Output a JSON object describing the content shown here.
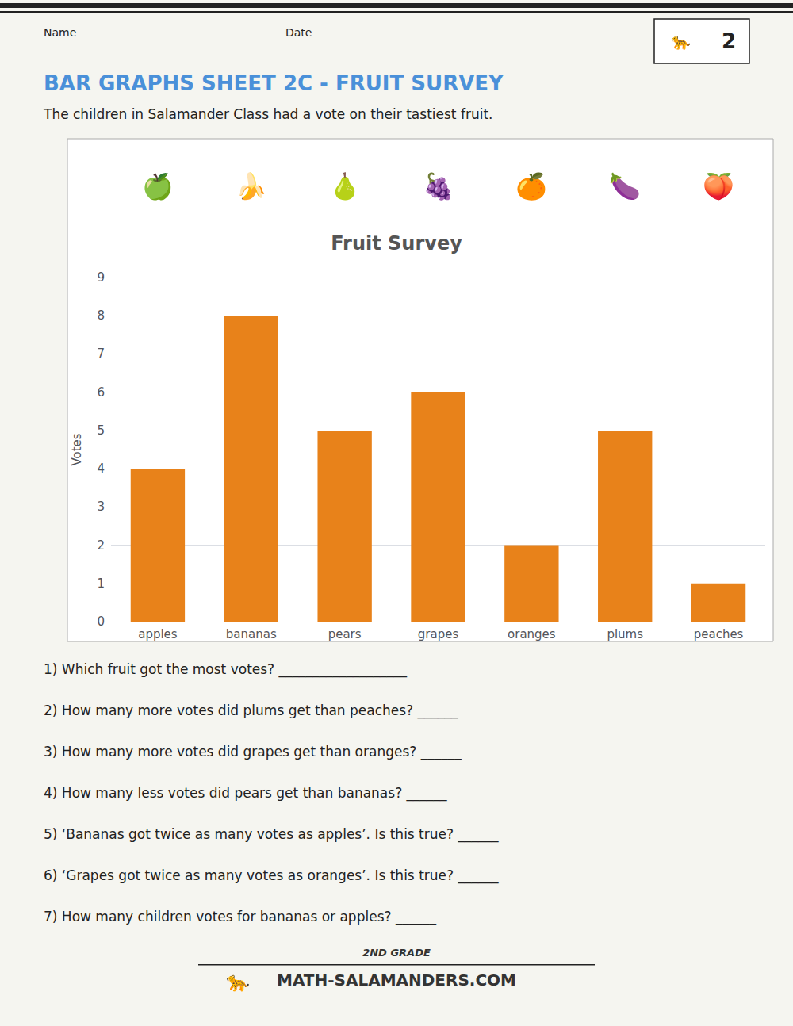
{
  "title": "BAR GRAPHS SHEET 2C - FRUIT SURVEY",
  "subtitle": "The children in Salamander Class had a vote on their tastiest fruit.",
  "annotations": [
    "Name",
    "Date",
    "2",
    "🐆",
    "1) Which fruit got the most votes? ___________________",
    "2) How many more votes did plums get than peaches? ______",
    "3) How many more votes did grapes get than oranges? ______",
    "4) How many less votes did pears get than bananas? ______",
    "5) ‘Bananas got twice as many votes as apples’. Is this true? ______",
    "6) ‘Grapes got twice as many votes as oranges’. Is this true? ______",
    "7) How many children votes for bananas or apples? ______",
    "2ND GRADE",
    "MATH-SALAMANDERS.COM",
    "🐆"
  ],
  "chart_data": {
    "type": "bar",
    "title": "Fruit Survey",
    "ylabel": "Votes",
    "categories": [
      "apples",
      "bananas",
      "pears",
      "grapes",
      "oranges",
      "plums",
      "peaches"
    ],
    "values": [
      4,
      8,
      5,
      6,
      2,
      5,
      1
    ],
    "color": "#E8821A",
    "ylim": [
      0,
      9
    ],
    "yticks": [
      0,
      1,
      2,
      3,
      4,
      5,
      6,
      7,
      8,
      9
    ],
    "grid": true,
    "annotations": [
      "🍏",
      "🍌",
      "🍐",
      "🍇",
      "🍊",
      "🍆",
      "🍑"
    ]
  }
}
